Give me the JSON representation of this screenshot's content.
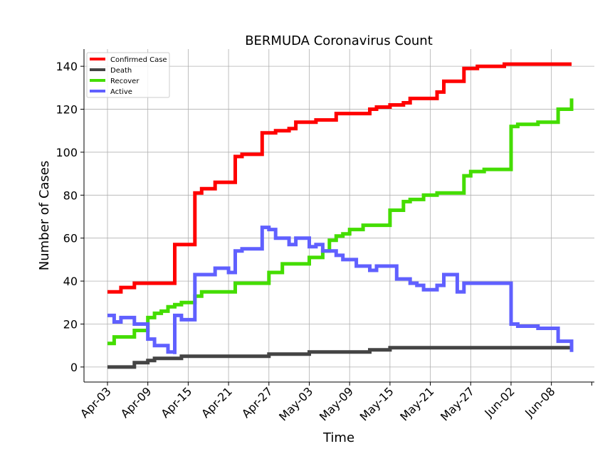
{
  "chart_data": {
    "type": "line",
    "title": "BERMUDA Coronavirus Count",
    "xlabel": "Time",
    "ylabel": "Number of Cases",
    "x_tick_labels": [
      "Apr-03",
      "Apr-09",
      "Apr-15",
      "Apr-21",
      "Apr-27",
      "May-03",
      "May-09",
      "May-15",
      "May-21",
      "May-27",
      "Jun-02",
      "Jun-08"
    ],
    "y_tick_labels": [
      "0",
      "20",
      "40",
      "60",
      "80",
      "100",
      "120",
      "140"
    ],
    "ylim": [
      -7,
      148
    ],
    "grid": true,
    "legend_position": "top-left",
    "x_start": "Apr-03",
    "x_end": "Jun-11",
    "series": [
      {
        "name": "Confirmed Case",
        "color": "#ff0000",
        "points": [
          [
            "Apr-03",
            35
          ],
          [
            "Apr-05",
            37
          ],
          [
            "Apr-07",
            39
          ],
          [
            "Apr-13",
            57
          ],
          [
            "Apr-16",
            81
          ],
          [
            "Apr-17",
            83
          ],
          [
            "Apr-19",
            86
          ],
          [
            "Apr-22",
            98
          ],
          [
            "Apr-23",
            99
          ],
          [
            "Apr-26",
            109
          ],
          [
            "Apr-28",
            110
          ],
          [
            "Apr-30",
            111
          ],
          [
            "May-01",
            114
          ],
          [
            "May-04",
            115
          ],
          [
            "May-07",
            118
          ],
          [
            "May-12",
            120
          ],
          [
            "May-13",
            121
          ],
          [
            "May-15",
            122
          ],
          [
            "May-17",
            123
          ],
          [
            "May-18",
            125
          ],
          [
            "May-22",
            128
          ],
          [
            "May-23",
            133
          ],
          [
            "May-26",
            139
          ],
          [
            "May-28",
            140
          ],
          [
            "Jun-01",
            141
          ],
          [
            "Jun-11",
            141
          ]
        ]
      },
      {
        "name": "Death",
        "color": "#444444",
        "points": [
          [
            "Apr-03",
            0
          ],
          [
            "Apr-07",
            2
          ],
          [
            "Apr-09",
            3
          ],
          [
            "Apr-10",
            4
          ],
          [
            "Apr-14",
            5
          ],
          [
            "Apr-27",
            6
          ],
          [
            "May-03",
            7
          ],
          [
            "May-12",
            8
          ],
          [
            "May-15",
            9
          ],
          [
            "Jun-11",
            9
          ]
        ]
      },
      {
        "name": "Recover",
        "color": "#44dd00",
        "points": [
          [
            "Apr-03",
            11
          ],
          [
            "Apr-04",
            14
          ],
          [
            "Apr-07",
            17
          ],
          [
            "Apr-09",
            23
          ],
          [
            "Apr-10",
            25
          ],
          [
            "Apr-11",
            26
          ],
          [
            "Apr-12",
            28
          ],
          [
            "Apr-13",
            29
          ],
          [
            "Apr-14",
            30
          ],
          [
            "Apr-16",
            33
          ],
          [
            "Apr-17",
            35
          ],
          [
            "Apr-20",
            35
          ],
          [
            "Apr-22",
            39
          ],
          [
            "Apr-27",
            44
          ],
          [
            "Apr-29",
            48
          ],
          [
            "May-03",
            51
          ],
          [
            "May-05",
            54
          ],
          [
            "May-06",
            59
          ],
          [
            "May-07",
            61
          ],
          [
            "May-08",
            62
          ],
          [
            "May-09",
            64
          ],
          [
            "May-11",
            66
          ],
          [
            "May-15",
            73
          ],
          [
            "May-17",
            77
          ],
          [
            "May-18",
            78
          ],
          [
            "May-20",
            80
          ],
          [
            "May-22",
            81
          ],
          [
            "May-26",
            89
          ],
          [
            "May-27",
            91
          ],
          [
            "May-29",
            92
          ],
          [
            "Jun-02",
            112
          ],
          [
            "Jun-03",
            113
          ],
          [
            "Jun-06",
            114
          ],
          [
            "Jun-09",
            120
          ],
          [
            "Jun-11",
            125
          ]
        ]
      },
      {
        "name": "Active",
        "color": "#6060ff",
        "points": [
          [
            "Apr-03",
            24
          ],
          [
            "Apr-04",
            21
          ],
          [
            "Apr-05",
            23
          ],
          [
            "Apr-07",
            20
          ],
          [
            "Apr-09",
            13
          ],
          [
            "Apr-10",
            10
          ],
          [
            "Apr-12",
            7
          ],
          [
            "Apr-13",
            6
          ],
          [
            "Apr-13",
            24
          ],
          [
            "Apr-14",
            22
          ],
          [
            "Apr-16",
            43
          ],
          [
            "Apr-19",
            46
          ],
          [
            "Apr-21",
            44
          ],
          [
            "Apr-22",
            54
          ],
          [
            "Apr-23",
            55
          ],
          [
            "Apr-26",
            65
          ],
          [
            "Apr-27",
            64
          ],
          [
            "Apr-28",
            60
          ],
          [
            "Apr-30",
            57
          ],
          [
            "May-01",
            60
          ],
          [
            "May-03",
            56
          ],
          [
            "May-04",
            57
          ],
          [
            "May-05",
            54
          ],
          [
            "May-07",
            52
          ],
          [
            "May-08",
            50
          ],
          [
            "May-10",
            47
          ],
          [
            "May-12",
            45
          ],
          [
            "May-13",
            47
          ],
          [
            "May-16",
            41
          ],
          [
            "May-18",
            39
          ],
          [
            "May-19",
            38
          ],
          [
            "May-20",
            36
          ],
          [
            "May-22",
            38
          ],
          [
            "May-23",
            43
          ],
          [
            "May-25",
            35
          ],
          [
            "May-26",
            39
          ],
          [
            "Jun-02",
            20
          ],
          [
            "Jun-03",
            19
          ],
          [
            "Jun-06",
            18
          ],
          [
            "Jun-09",
            12
          ],
          [
            "Jun-11",
            7
          ]
        ]
      }
    ]
  }
}
